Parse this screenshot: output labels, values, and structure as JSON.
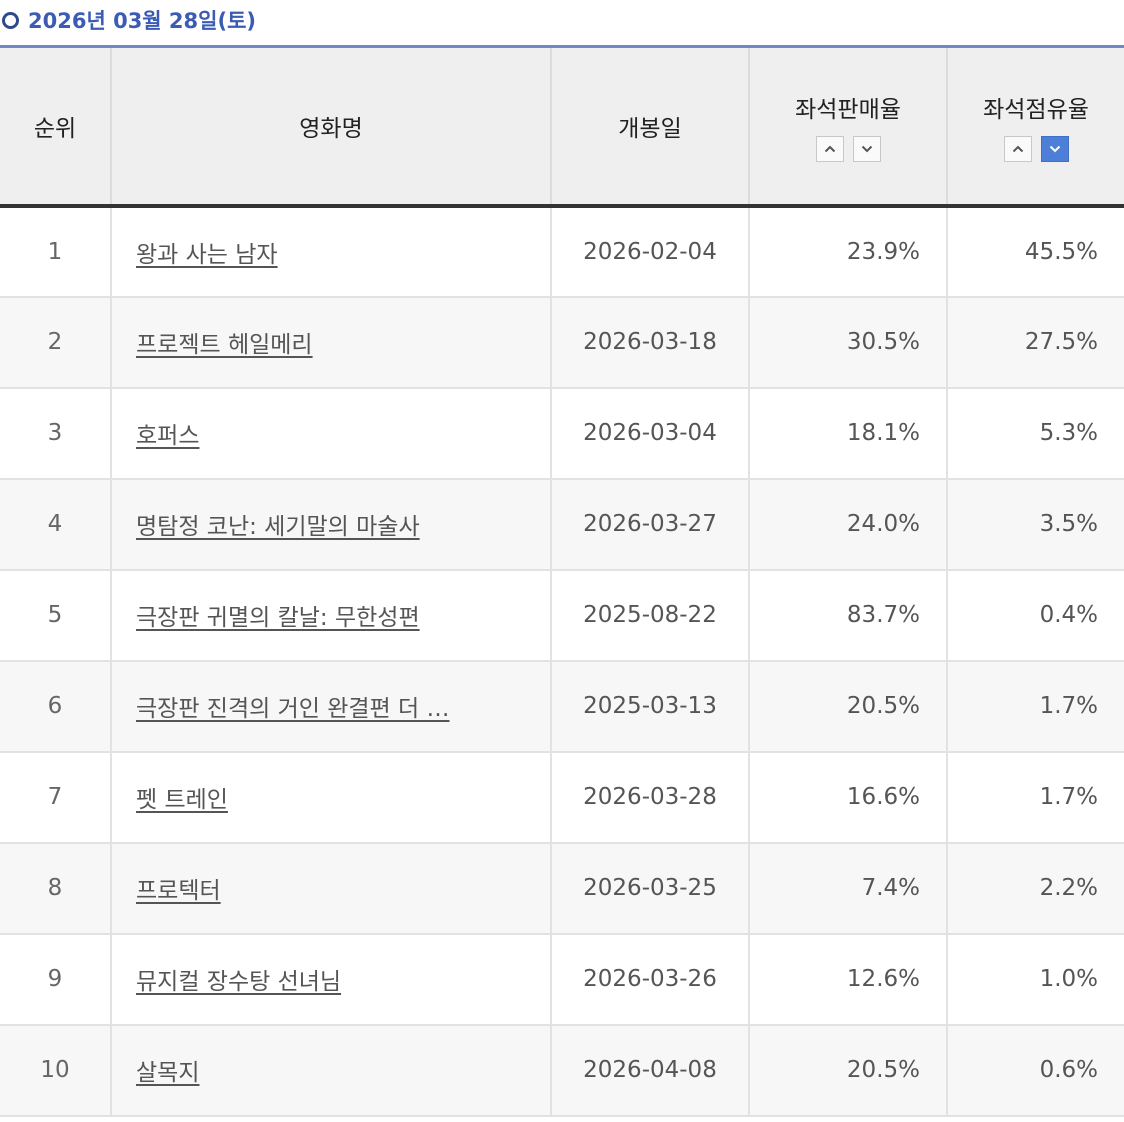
{
  "date_heading": "2026년 03월 28일(토)",
  "table": {
    "headers": {
      "rank": "순위",
      "title": "영화명",
      "release": "개봉일",
      "sales_rate": "좌석판매율",
      "occupancy": "좌석점유율"
    },
    "sort": {
      "sales_rate": "none",
      "occupancy": "desc"
    },
    "rows": [
      {
        "rank": "1",
        "title": "왕과 사는 남자",
        "release": "2026-02-04",
        "sales_rate": "23.9%",
        "occupancy": "45.5%"
      },
      {
        "rank": "2",
        "title": "프로젝트 헤일메리",
        "release": "2026-03-18",
        "sales_rate": "30.5%",
        "occupancy": "27.5%"
      },
      {
        "rank": "3",
        "title": "호퍼스",
        "release": "2026-03-04",
        "sales_rate": "18.1%",
        "occupancy": "5.3%"
      },
      {
        "rank": "4",
        "title": "명탐정 코난: 세기말의 마술사",
        "release": "2026-03-27",
        "sales_rate": "24.0%",
        "occupancy": "3.5%"
      },
      {
        "rank": "5",
        "title": "극장판 귀멸의 칼날: 무한성편",
        "release": "2025-08-22",
        "sales_rate": "83.7%",
        "occupancy": "0.4%"
      },
      {
        "rank": "6",
        "title": "극장판 진격의 거인 완결편 더 …",
        "release": "2025-03-13",
        "sales_rate": "20.5%",
        "occupancy": "1.7%"
      },
      {
        "rank": "7",
        "title": "펫 트레인",
        "release": "2026-03-28",
        "sales_rate": "16.6%",
        "occupancy": "1.7%"
      },
      {
        "rank": "8",
        "title": "프로텍터",
        "release": "2026-03-25",
        "sales_rate": "7.4%",
        "occupancy": "2.2%"
      },
      {
        "rank": "9",
        "title": "뮤지컬 장수탕 선녀님",
        "release": "2026-03-26",
        "sales_rate": "12.6%",
        "occupancy": "1.0%"
      },
      {
        "rank": "10",
        "title": "살목지",
        "release": "2026-04-08",
        "sales_rate": "20.5%",
        "occupancy": "0.6%"
      }
    ]
  },
  "colors": {
    "heading": "#3b5bb5",
    "table_top_border": "#6f86c9",
    "sort_active": "#4d7fd8"
  }
}
